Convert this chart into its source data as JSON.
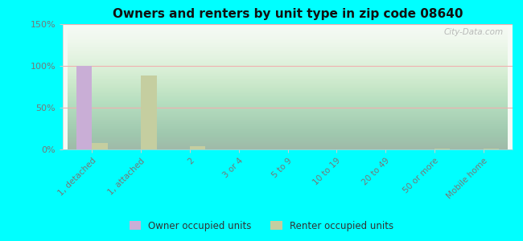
{
  "title": "Owners and renters by unit type in zip code 08640",
  "categories": [
    "1, detached",
    "1, attached",
    "2",
    "3 or 4",
    "5 to 9",
    "10 to 19",
    "20 to 49",
    "50 or more",
    "Mobile home"
  ],
  "owner_values": [
    100,
    0,
    0,
    0,
    0,
    0,
    0,
    0,
    0
  ],
  "renter_values": [
    8,
    88,
    4,
    0,
    0,
    0,
    0,
    1,
    1
  ],
  "owner_color": "#c9aed6",
  "renter_color": "#c5ceA0",
  "outer_bg": "#00ffff",
  "ylim": [
    0,
    150
  ],
  "yticks": [
    0,
    50,
    100,
    150
  ],
  "ytick_labels": [
    "0%",
    "50%",
    "100%",
    "150%"
  ],
  "bar_width": 0.32,
  "legend_owner": "Owner occupied units",
  "legend_renter": "Renter occupied units",
  "watermark": "City-Data.com",
  "tick_color": "#777777",
  "grid_color": "#f0b0b0",
  "plot_bg_top": "#d8edd8",
  "plot_bg_bottom": "#f5faf5"
}
